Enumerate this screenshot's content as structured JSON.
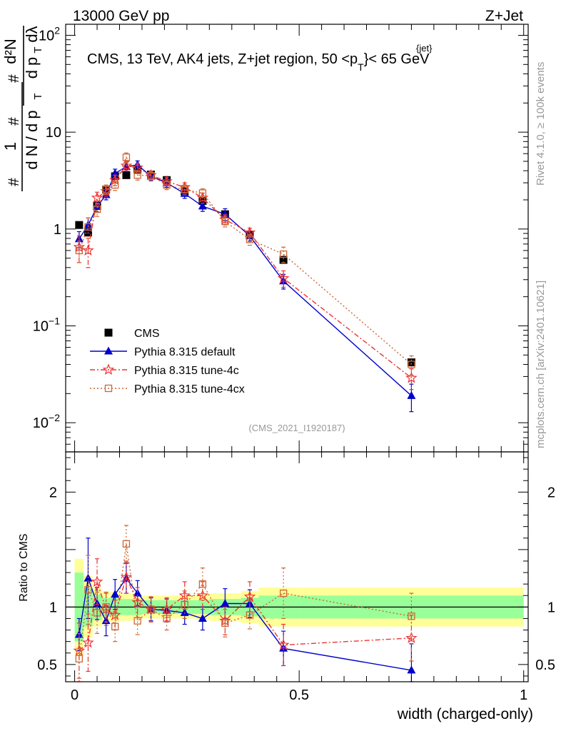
{
  "header": {
    "energy": "13000 GeV pp",
    "process": "Z+Jet"
  },
  "side_labels": {
    "rivet": "Rivet 4.1.0, ≥ 100k events",
    "mcplots": "mcplots.cern.ch [arXiv:2401.10621]"
  },
  "chart_data": {
    "type": "scatter",
    "title": "CMS, 13 TeV, AK4 jets, Z+jet region, 50 <p",
    "title_sub": "T",
    "title_sup": "{jet}",
    "title_tail": "}< 65 GeV",
    "analysis_id": "(CMS_2021_I1920187)",
    "xlabel": "width (charged-only)",
    "ylabel_main": "1/(dN/dp_T) d²N/(dp_T dλ)",
    "ylabel_ratio": "Ratio to CMS",
    "xlim": [
      -0.02,
      1.01
    ],
    "ylim_main": [
      0.005,
      130
    ],
    "ylim_ratio": [
      0.35,
      2.35
    ],
    "main_y_ticks": [
      {
        "value": 0.01,
        "base": "10",
        "exp": "−2"
      },
      {
        "value": 0.1,
        "base": "10",
        "exp": "−1"
      },
      {
        "value": 1,
        "label": "1"
      },
      {
        "value": 10,
        "label": "10"
      },
      {
        "value": 100,
        "base": "10",
        "exp": "2"
      }
    ],
    "ratio_y_ticks": [
      {
        "value": 0.5,
        "label": "0.5"
      },
      {
        "value": 1,
        "label": "1"
      },
      {
        "value": 2,
        "label": "2"
      }
    ],
    "x_ticks": [
      {
        "value": 0,
        "label": "0"
      },
      {
        "value": 0.5,
        "label": "0.5"
      },
      {
        "value": 1,
        "label": "1"
      }
    ],
    "x": [
      0.01,
      0.03,
      0.05,
      0.07,
      0.09,
      0.115,
      0.14,
      0.17,
      0.205,
      0.245,
      0.285,
      0.335,
      0.39,
      0.465,
      0.75
    ],
    "bin_edges": [
      0.0,
      0.02,
      0.04,
      0.06,
      0.08,
      0.1,
      0.13,
      0.15,
      0.19,
      0.22,
      0.27,
      0.3,
      0.37,
      0.41,
      0.5,
      1.0
    ],
    "band_green": [
      0.3,
      0.17,
      0.11,
      0.08,
      0.08,
      0.07,
      0.07,
      0.06,
      0.06,
      0.06,
      0.06,
      0.07,
      0.08,
      0.1,
      0.1
    ],
    "band_yellow": [
      0.42,
      0.27,
      0.17,
      0.13,
      0.13,
      0.12,
      0.11,
      0.1,
      0.1,
      0.1,
      0.11,
      0.12,
      0.14,
      0.17,
      0.17
    ],
    "series": [
      {
        "name": "CMS",
        "color": "#000000",
        "marker": "square-filled",
        "line": "none",
        "values": [
          1.1,
          0.92,
          1.75,
          2.55,
          3.5,
          3.6,
          4.1,
          3.65,
          3.2,
          2.45,
          1.95,
          1.42,
          0.86,
          0.48,
          0.042
        ]
      },
      {
        "name": "Pythia 8.315 default",
        "color": "#0000cc",
        "marker": "triangle",
        "line": "solid",
        "values": [
          0.79,
          1.1,
          1.7,
          2.25,
          3.75,
          4.4,
          4.6,
          3.5,
          3.0,
          2.32,
          1.72,
          1.42,
          0.85,
          0.29,
          0.019
        ],
        "errors": [
          0.15,
          0.2,
          0.2,
          0.25,
          0.4,
          0.5,
          0.45,
          0.35,
          0.3,
          0.25,
          0.2,
          0.2,
          0.1,
          0.05,
          0.006
        ],
        "ratio": [
          0.76,
          1.25,
          1.03,
          0.88,
          1.11,
          1.25,
          1.12,
          0.98,
          0.97,
          0.95,
          0.9,
          1.03,
          1.03,
          0.64,
          0.45
        ],
        "ratio_errors": [
          0.14,
          0.35,
          0.14,
          0.13,
          0.13,
          0.13,
          0.11,
          0.1,
          0.1,
          0.1,
          0.1,
          0.13,
          0.12,
          0.15,
          0.23
        ]
      },
      {
        "name": "Pythia 8.315 tune-4c",
        "color": "#ee3333",
        "marker": "star",
        "line": "dashdot",
        "values": [
          0.65,
          0.6,
          2.1,
          2.45,
          3.2,
          4.5,
          4.3,
          3.6,
          3.1,
          2.7,
          2.1,
          1.25,
          0.92,
          0.31,
          0.029
        ],
        "errors": [
          0.2,
          0.2,
          0.3,
          0.3,
          0.4,
          0.5,
          0.45,
          0.35,
          0.3,
          0.3,
          0.25,
          0.15,
          0.1,
          0.06,
          0.007
        ],
        "ratio": [
          0.62,
          0.69,
          1.22,
          0.98,
          0.93,
          1.26,
          1.04,
          0.98,
          0.98,
          1.1,
          1.1,
          0.88,
          1.09,
          0.67,
          0.73
        ],
        "ratio_errors": [
          0.24,
          0.25,
          0.2,
          0.14,
          0.13,
          0.14,
          0.13,
          0.11,
          0.1,
          0.12,
          0.12,
          0.12,
          0.13,
          0.18,
          0.2
        ]
      },
      {
        "name": "Pythia 8.315 tune-4cx",
        "color": "#cc6633",
        "marker": "square-open",
        "line": "dotted",
        "values": [
          0.6,
          1.05,
          1.6,
          2.55,
          2.85,
          5.5,
          3.6,
          3.55,
          2.85,
          2.55,
          2.35,
          1.2,
          0.78,
          0.55,
          0.04
        ],
        "errors": [
          0.15,
          0.25,
          0.25,
          0.3,
          0.35,
          0.6,
          0.4,
          0.35,
          0.3,
          0.3,
          0.25,
          0.15,
          0.1,
          0.1,
          0.009
        ],
        "ratio": [
          0.55,
          1.15,
          0.95,
          1.0,
          0.83,
          1.55,
          0.88,
          0.98,
          0.9,
          1.02,
          1.2,
          0.86,
          0.93,
          1.12,
          0.92
        ],
        "ratio_errors": [
          0.22,
          0.3,
          0.18,
          0.13,
          0.13,
          0.16,
          0.12,
          0.11,
          0.1,
          0.12,
          0.14,
          0.12,
          0.12,
          0.22,
          0.2
        ]
      }
    ]
  }
}
